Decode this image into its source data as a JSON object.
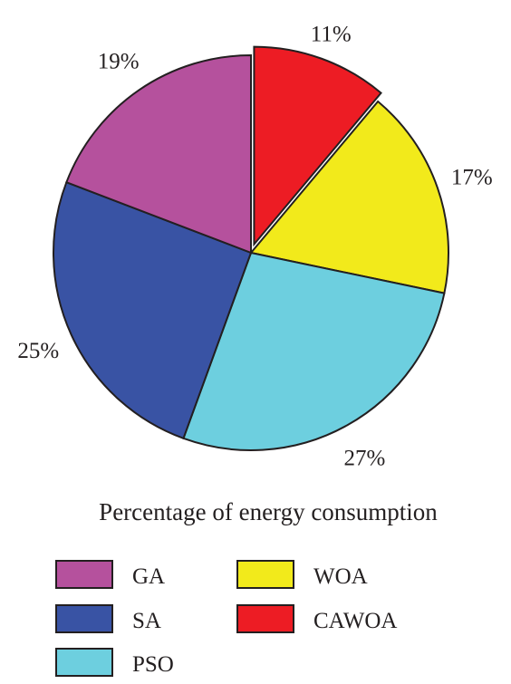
{
  "chart_data": {
    "type": "pie",
    "title": "Percentage of energy consumption",
    "slices": [
      {
        "name": "CAWOA",
        "value": 11,
        "label": "11%",
        "color": "#ed1c24",
        "exploded": true
      },
      {
        "name": "WOA",
        "value": 17,
        "label": "17%",
        "color": "#f2ea1b",
        "exploded": false
      },
      {
        "name": "PSO",
        "value": 27,
        "label": "27%",
        "color": "#6dcfdf",
        "exploded": false
      },
      {
        "name": "SA",
        "value": 25,
        "label": "25%",
        "color": "#3953a4",
        "exploded": false
      },
      {
        "name": "GA",
        "value": 19,
        "label": "19%",
        "color": "#b5519d",
        "exploded": false
      }
    ],
    "legend": [
      {
        "name": "GA",
        "color": "#b5519d"
      },
      {
        "name": "WOA",
        "color": "#f2ea1b"
      },
      {
        "name": "SA",
        "color": "#3953a4"
      },
      {
        "name": "CAWOA",
        "color": "#ed1c24"
      },
      {
        "name": "PSO",
        "color": "#6dcfdf"
      }
    ],
    "legend_placement": "bottom",
    "start": "top, clockwise"
  }
}
